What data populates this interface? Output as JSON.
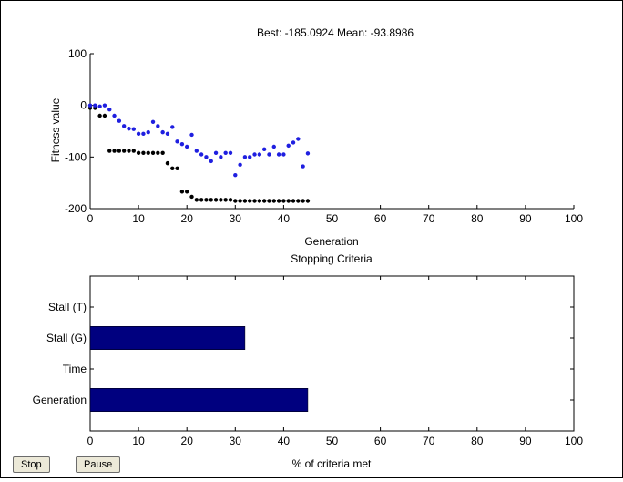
{
  "toolbar": {
    "stop_label": "Stop",
    "pause_label": "Pause"
  },
  "chart_data": [
    {
      "type": "scatter",
      "title": "Best: -185.0924 Mean: -93.8986",
      "xlabel": "Generation",
      "ylabel": "Fitness value",
      "xlim": [
        0,
        100
      ],
      "ylim": [
        -200,
        100
      ],
      "xticks": [
        0,
        10,
        20,
        30,
        40,
        50,
        60,
        70,
        80,
        90,
        100
      ],
      "yticks": [
        -200,
        -100,
        0,
        100
      ],
      "series": [
        {
          "color": "#000000",
          "x": [
            0,
            1,
            2,
            3,
            4,
            5,
            6,
            7,
            8,
            9,
            10,
            11,
            12,
            13,
            14,
            15,
            16,
            17,
            18,
            19,
            20,
            21,
            22,
            23,
            24,
            25,
            26,
            27,
            28,
            29,
            30,
            31,
            32,
            33,
            34,
            35,
            36,
            37,
            38,
            39,
            40,
            41,
            42,
            43,
            44,
            45
          ],
          "y": [
            -5,
            -5,
            -20,
            -20,
            -88,
            -88,
            -88,
            -88,
            -88,
            -88,
            -92,
            -92,
            -92,
            -92,
            -92,
            -92,
            -112,
            -122,
            -122,
            -167,
            -167,
            -177,
            -183,
            -183,
            -183,
            -183,
            -183,
            -183,
            -183,
            -183,
            -185,
            -185,
            -185,
            -185,
            -185,
            -185,
            -185,
            -185,
            -185,
            -185,
            -185,
            -185,
            -185,
            -185,
            -185,
            -185
          ]
        },
        {
          "color": "#1f1fe0",
          "x": [
            0,
            1,
            2,
            3,
            4,
            5,
            6,
            7,
            8,
            9,
            10,
            11,
            12,
            13,
            14,
            15,
            16,
            17,
            18,
            19,
            20,
            21,
            22,
            23,
            24,
            25,
            26,
            27,
            28,
            29,
            30,
            31,
            32,
            33,
            34,
            35,
            36,
            37,
            38,
            39,
            40,
            41,
            42,
            43,
            44,
            45
          ],
          "y": [
            0,
            0,
            -2,
            0,
            -8,
            -20,
            -30,
            -40,
            -45,
            -46,
            -55,
            -55,
            -52,
            -32,
            -40,
            -52,
            -55,
            -42,
            -70,
            -75,
            -80,
            -57,
            -88,
            -95,
            -100,
            -108,
            -92,
            -100,
            -92,
            -92,
            -135,
            -115,
            -100,
            -100,
            -95,
            -95,
            -85,
            -95,
            -80,
            -95,
            -95,
            -78,
            -72,
            -65,
            -118,
            -93
          ]
        }
      ]
    },
    {
      "type": "bar",
      "orientation": "horizontal",
      "title": "Stopping Criteria",
      "xlabel": "% of criteria met",
      "xlim": [
        0,
        100
      ],
      "xticks": [
        0,
        10,
        20,
        30,
        40,
        50,
        60,
        70,
        80,
        90,
        100
      ],
      "categories": [
        "Stall (T)",
        "Stall (G)",
        "Time",
        "Generation"
      ],
      "values": [
        0,
        32,
        0,
        45
      ],
      "bar_color": "#00007f"
    }
  ]
}
